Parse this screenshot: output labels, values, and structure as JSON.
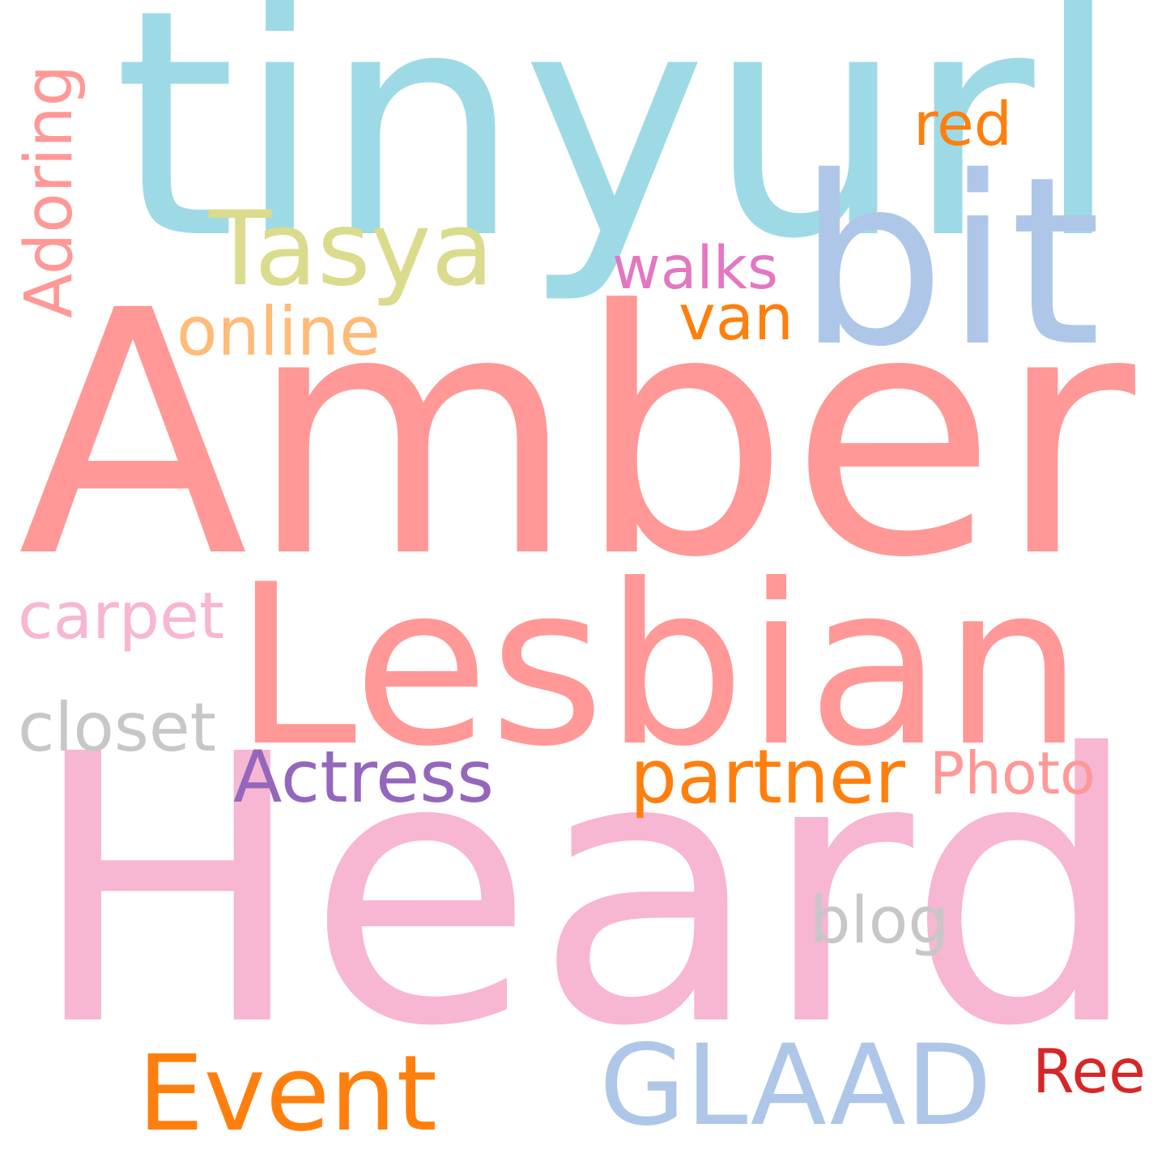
{
  "words": [
    {
      "key": "tinyurl",
      "text": "tinyurl",
      "color": "#9edae5"
    },
    {
      "key": "bit",
      "text": "bit",
      "color": "#aec7e8"
    },
    {
      "key": "amber",
      "text": "Amber",
      "color": "#ff9896"
    },
    {
      "key": "lesbian",
      "text": "Lesbian",
      "color": "#ff9896"
    },
    {
      "key": "heard",
      "text": "Heard",
      "color": "#f7b6d2"
    },
    {
      "key": "tasya",
      "text": "Tasya",
      "color": "#dbdb8d"
    },
    {
      "key": "red",
      "text": "red",
      "color": "#ff7f0e"
    },
    {
      "key": "walks",
      "text": "walks",
      "color": "#e377c2"
    },
    {
      "key": "adoring",
      "text": "Adoring",
      "color": "#ff9896"
    },
    {
      "key": "online",
      "text": "online",
      "color": "#ffbb78"
    },
    {
      "key": "van",
      "text": "van",
      "color": "#ff7f0e"
    },
    {
      "key": "carpet",
      "text": "carpet",
      "color": "#f7b6d2"
    },
    {
      "key": "closet",
      "text": "closet",
      "color": "#c7c7c7"
    },
    {
      "key": "actress",
      "text": "Actress",
      "color": "#9467bd"
    },
    {
      "key": "partner",
      "text": "partner",
      "color": "#ff7f0e"
    },
    {
      "key": "photo",
      "text": "Photo",
      "color": "#ff9896"
    },
    {
      "key": "blog",
      "text": "blog",
      "color": "#c7c7c7"
    },
    {
      "key": "event",
      "text": "Event",
      "color": "#ff7f0e"
    },
    {
      "key": "glaad",
      "text": "GLAAD",
      "color": "#aec7e8"
    },
    {
      "key": "ree",
      "text": "Ree",
      "color": "#d62728"
    }
  ]
}
